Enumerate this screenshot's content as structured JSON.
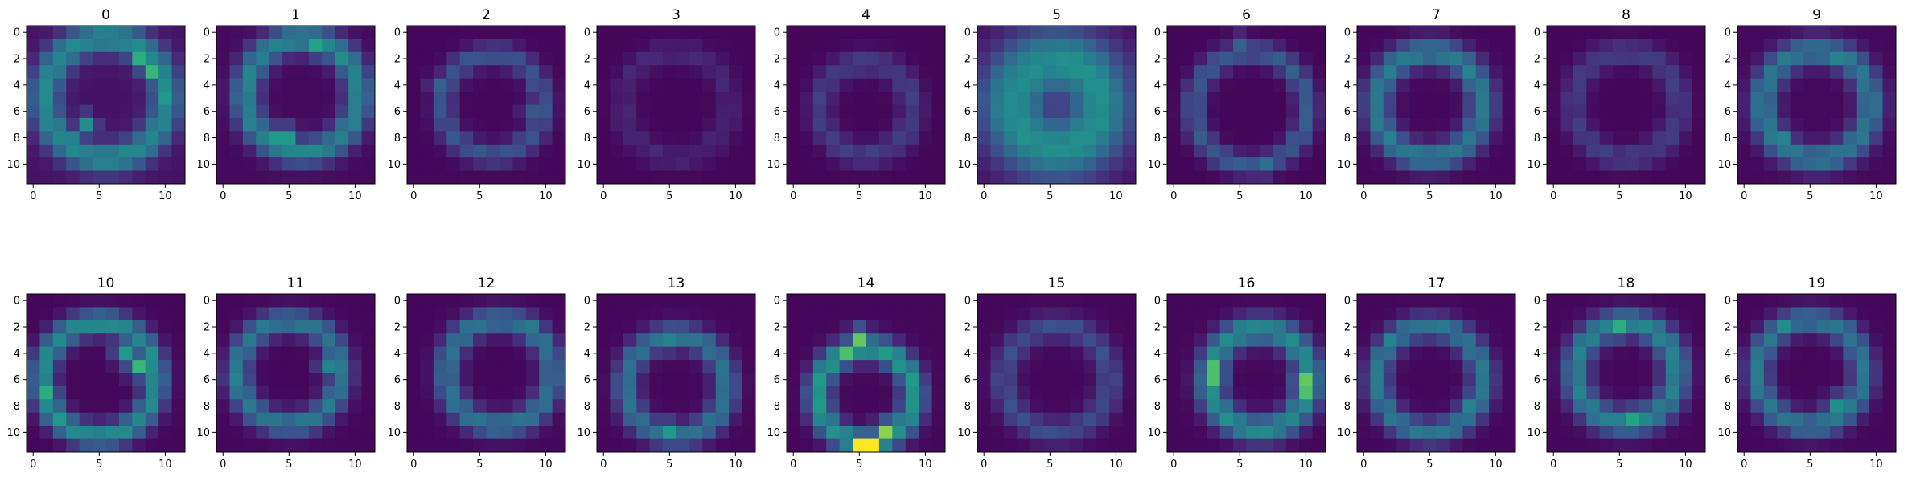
{
  "chart_data": {
    "type": "heatmap",
    "colormap": "viridis",
    "grid_rows": 2,
    "grid_cols": 10,
    "shape": [
      12,
      12
    ],
    "value_range": [
      0,
      1
    ],
    "xticks": [
      0,
      5,
      10
    ],
    "yticks": [
      0,
      2,
      4,
      6,
      8,
      10
    ],
    "panels": [
      {
        "title": "0",
        "pattern": "ring",
        "params": {
          "cx": 5.5,
          "cy": 5.0,
          "r": 4.6,
          "w": 1.2
        },
        "peak": 0.45,
        "base": 0.12,
        "hotspots": [
          [
            2,
            8,
            0.7
          ],
          [
            3,
            9,
            0.75
          ],
          [
            5,
            10,
            0.6
          ],
          [
            7,
            4,
            0.55
          ],
          [
            8,
            3,
            0.5
          ]
        ]
      },
      {
        "title": "1",
        "pattern": "ring",
        "params": {
          "cx": 6.0,
          "cy": 4.8,
          "r": 4.3,
          "w": 1.1
        },
        "peak": 0.45,
        "base": 0.06,
        "hotspots": [
          [
            1,
            7,
            0.65
          ],
          [
            2,
            9,
            0.55
          ],
          [
            8,
            4,
            0.6
          ],
          [
            8,
            5,
            0.6
          ]
        ]
      },
      {
        "title": "2",
        "pattern": "ring",
        "params": {
          "cx": 6.0,
          "cy": 5.5,
          "r": 3.8,
          "w": 0.9
        },
        "peak": 0.25,
        "base": 0.04,
        "hotspots": [
          [
            4,
            2,
            0.35
          ],
          [
            6,
            9,
            0.3
          ]
        ]
      },
      {
        "title": "3",
        "pattern": "ring",
        "params": {
          "cx": 5.5,
          "cy": 5.5,
          "r": 4.0,
          "w": 1.0
        },
        "peak": 0.08,
        "base": 0.03,
        "hotspots": []
      },
      {
        "title": "4",
        "pattern": "ring",
        "params": {
          "cx": 5.5,
          "cy": 5.8,
          "r": 3.5,
          "w": 1.0
        },
        "peak": 0.16,
        "base": 0.03,
        "hotspots": []
      },
      {
        "title": "5",
        "pattern": "ring",
        "params": {
          "cx": 5.5,
          "cy": 5.5,
          "r": 3.3,
          "w": 2.6
        },
        "peak": 0.48,
        "base": 0.1,
        "hotspots": []
      },
      {
        "title": "6",
        "pattern": "ring",
        "params": {
          "cx": 5.8,
          "cy": 5.8,
          "r": 4.3,
          "w": 0.9
        },
        "peak": 0.28,
        "base": 0.03,
        "hotspots": [
          [
            1,
            5,
            0.35
          ],
          [
            10,
            7,
            0.4
          ]
        ]
      },
      {
        "title": "7",
        "pattern": "ring",
        "params": {
          "cx": 5.0,
          "cy": 5.5,
          "r": 4.0,
          "w": 1.1
        },
        "peak": 0.42,
        "base": 0.04,
        "hotspots": [
          [
            3,
            8,
            0.5
          ],
          [
            8,
            2,
            0.5
          ]
        ]
      },
      {
        "title": "8",
        "pattern": "ring",
        "params": {
          "cx": 5.5,
          "cy": 5.5,
          "r": 4.0,
          "w": 1.0
        },
        "peak": 0.16,
        "base": 0.03,
        "hotspots": []
      },
      {
        "title": "9",
        "pattern": "ring",
        "params": {
          "cx": 5.5,
          "cy": 5.5,
          "r": 4.1,
          "w": 1.1
        },
        "peak": 0.4,
        "base": 0.05,
        "hotspots": [
          [
            2,
            7,
            0.5
          ],
          [
            8,
            3,
            0.5
          ]
        ]
      },
      {
        "title": "10",
        "pattern": "ring",
        "params": {
          "cx": 5.0,
          "cy": 6.0,
          "r": 4.3,
          "w": 1.0
        },
        "peak": 0.5,
        "base": 0.04,
        "hotspots": [
          [
            4,
            7,
            0.6
          ],
          [
            5,
            8,
            0.75
          ],
          [
            7,
            1,
            0.7
          ],
          [
            9,
            2,
            0.6
          ]
        ]
      },
      {
        "title": "11",
        "pattern": "ring",
        "params": {
          "cx": 5.0,
          "cy": 5.5,
          "r": 3.9,
          "w": 1.0
        },
        "peak": 0.4,
        "base": 0.04,
        "hotspots": [
          [
            5,
            8,
            0.5
          ],
          [
            6,
            1,
            0.5
          ]
        ]
      },
      {
        "title": "12",
        "pattern": "ring",
        "params": {
          "cx": 6.5,
          "cy": 5.5,
          "r": 4.0,
          "w": 1.0
        },
        "peak": 0.38,
        "base": 0.04,
        "hotspots": [
          [
            2,
            9,
            0.45
          ]
        ]
      },
      {
        "title": "13",
        "pattern": "ring",
        "params": {
          "cx": 5.5,
          "cy": 6.5,
          "r": 3.8,
          "w": 1.0
        },
        "peak": 0.38,
        "base": 0.04,
        "hotspots": [
          [
            3,
            5,
            0.5
          ],
          [
            10,
            5,
            0.6
          ]
        ]
      },
      {
        "title": "14",
        "pattern": "ring",
        "params": {
          "cx": 5.5,
          "cy": 7.2,
          "r": 3.6,
          "w": 1.0
        },
        "peak": 0.55,
        "base": 0.04,
        "hotspots": [
          [
            3,
            5,
            0.85
          ],
          [
            4,
            4,
            0.8
          ],
          [
            11,
            5,
            1.0
          ],
          [
            11,
            6,
            1.0
          ],
          [
            10,
            7,
            0.9
          ]
        ]
      },
      {
        "title": "15",
        "pattern": "ring",
        "params": {
          "cx": 5.5,
          "cy": 6.0,
          "r": 4.0,
          "w": 1.0
        },
        "peak": 0.22,
        "base": 0.04,
        "hotspots": []
      },
      {
        "title": "16",
        "pattern": "ring",
        "params": {
          "cx": 6.5,
          "cy": 6.0,
          "r": 3.8,
          "w": 1.1
        },
        "peak": 0.5,
        "base": 0.04,
        "hotspots": [
          [
            5,
            3,
            0.8
          ],
          [
            6,
            3,
            0.8
          ],
          [
            6,
            10,
            0.85
          ],
          [
            7,
            10,
            0.8
          ]
        ]
      },
      {
        "title": "17",
        "pattern": "ring",
        "params": {
          "cx": 5.0,
          "cy": 6.0,
          "r": 4.0,
          "w": 1.0
        },
        "peak": 0.4,
        "base": 0.04,
        "hotspots": [
          [
            3,
            2,
            0.5
          ],
          [
            8,
            8,
            0.5
          ]
        ]
      },
      {
        "title": "18",
        "pattern": "ring",
        "params": {
          "cx": 5.5,
          "cy": 5.5,
          "r": 3.8,
          "w": 1.1
        },
        "peak": 0.45,
        "base": 0.04,
        "hotspots": [
          [
            2,
            5,
            0.7
          ],
          [
            9,
            6,
            0.65
          ]
        ]
      },
      {
        "title": "19",
        "pattern": "ring",
        "params": {
          "cx": 5.0,
          "cy": 5.5,
          "r": 4.0,
          "w": 1.0
        },
        "peak": 0.4,
        "base": 0.04,
        "hotspots": [
          [
            2,
            3,
            0.55
          ],
          [
            8,
            7,
            0.55
          ]
        ]
      }
    ]
  }
}
